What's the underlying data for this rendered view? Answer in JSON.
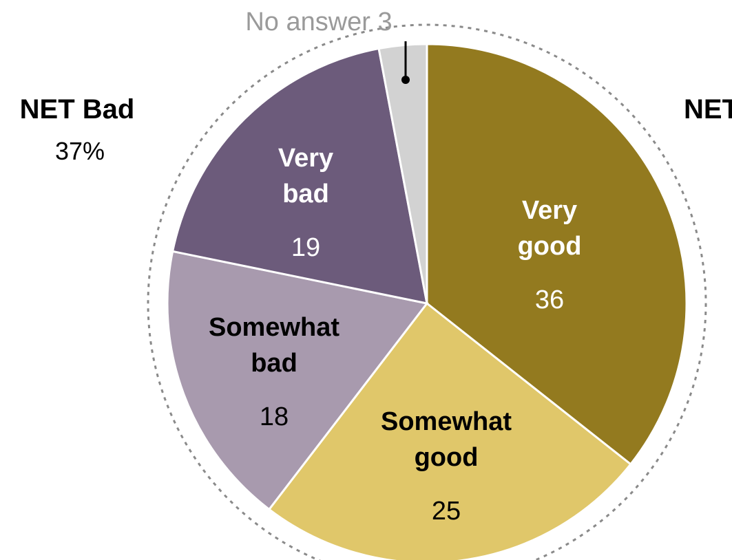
{
  "chart_data": {
    "type": "pie",
    "slices": [
      {
        "label_lines": [
          "Very",
          "good"
        ],
        "value": 36,
        "color": "#937A1F",
        "text_color": "#ffffff"
      },
      {
        "label_lines": [
          "Somewhat",
          "good"
        ],
        "value": 25,
        "color": "#E0C76A",
        "text_color": "#000000"
      },
      {
        "label_lines": [
          "Somewhat",
          "bad"
        ],
        "value": 18,
        "color": "#A89AAE",
        "text_color": "#000000"
      },
      {
        "label_lines": [
          "Very",
          "bad"
        ],
        "value": 19,
        "color": "#6C5B7B",
        "text_color": "#ffffff"
      },
      {
        "label_lines": [
          "No answer"
        ],
        "value": 3,
        "color": "#D2D2D2",
        "text_color": "#9a9a9a"
      }
    ],
    "callout": {
      "text": "No answer 3"
    },
    "net_groups": [
      {
        "label": "NET Bad",
        "value": "37%"
      },
      {
        "label": "NET Good",
        "value": ""
      }
    ],
    "outline": "dashed"
  }
}
